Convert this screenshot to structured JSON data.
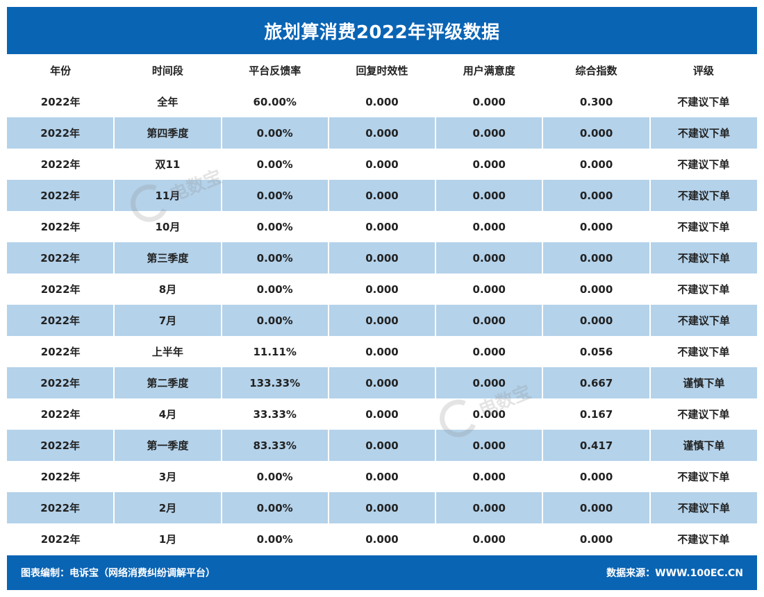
{
  "title": "旅划算消费2022年评级数据",
  "columns": [
    "年份",
    "时间段",
    "平台反馈率",
    "回复时效性",
    "用户满意度",
    "综合指数",
    "评级"
  ],
  "rows": [
    [
      "2022年",
      "全年",
      "60.00%",
      "0.000",
      "0.000",
      "0.300",
      "不建议下单"
    ],
    [
      "2022年",
      "第四季度",
      "0.00%",
      "0.000",
      "0.000",
      "0.000",
      "不建议下单"
    ],
    [
      "2022年",
      "双11",
      "0.00%",
      "0.000",
      "0.000",
      "0.000",
      "不建议下单"
    ],
    [
      "2022年",
      "11月",
      "0.00%",
      "0.000",
      "0.000",
      "0.000",
      "不建议下单"
    ],
    [
      "2022年",
      "10月",
      "0.00%",
      "0.000",
      "0.000",
      "0.000",
      "不建议下单"
    ],
    [
      "2022年",
      "第三季度",
      "0.00%",
      "0.000",
      "0.000",
      "0.000",
      "不建议下单"
    ],
    [
      "2022年",
      "8月",
      "0.00%",
      "0.000",
      "0.000",
      "0.000",
      "不建议下单"
    ],
    [
      "2022年",
      "7月",
      "0.00%",
      "0.000",
      "0.000",
      "0.000",
      "不建议下单"
    ],
    [
      "2022年",
      "上半年",
      "11.11%",
      "0.000",
      "0.000",
      "0.056",
      "不建议下单"
    ],
    [
      "2022年",
      "第二季度",
      "133.33%",
      "0.000",
      "0.000",
      "0.667",
      "谨慎下单"
    ],
    [
      "2022年",
      "4月",
      "33.33%",
      "0.000",
      "0.000",
      "0.167",
      "不建议下单"
    ],
    [
      "2022年",
      "第一季度",
      "83.33%",
      "0.000",
      "0.000",
      "0.417",
      "谨慎下单"
    ],
    [
      "2022年",
      "3月",
      "0.00%",
      "0.000",
      "0.000",
      "0.000",
      "不建议下单"
    ],
    [
      "2022年",
      "2月",
      "0.00%",
      "0.000",
      "0.000",
      "0.000",
      "不建议下单"
    ],
    [
      "2022年",
      "1月",
      "0.00%",
      "0.000",
      "0.000",
      "0.000",
      "不建议下单"
    ]
  ],
  "footer": {
    "left": "图表编制：电诉宝（网络消费纠纷调解平台）",
    "right": "数据来源：WWW.100EC.CN"
  },
  "watermark": {
    "text": "电数宝"
  },
  "colors": {
    "brand": "#0a64b4",
    "stripe": "#b4d2ea"
  }
}
